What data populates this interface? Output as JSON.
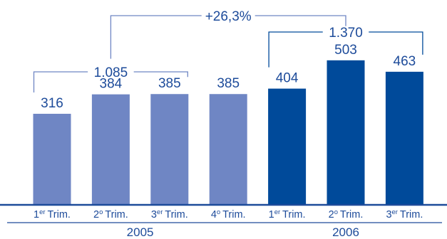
{
  "chart_data": {
    "type": "bar",
    "categories": [
      {
        "num": "1",
        "sup": "er",
        "word": "Trim."
      },
      {
        "num": "2",
        "sup": "o",
        "word": "Trim."
      },
      {
        "num": "3",
        "sup": "er",
        "word": "Trim."
      },
      {
        "num": "4",
        "sup": "o",
        "word": "Trim."
      },
      {
        "num": "1",
        "sup": "er",
        "word": "Trim."
      },
      {
        "num": "2",
        "sup": "o",
        "word": "Trim."
      },
      {
        "num": "3",
        "sup": "er",
        "word": "Trim."
      }
    ],
    "values": [
      316,
      384,
      385,
      385,
      404,
      503,
      463
    ],
    "value_labels": [
      "316",
      "384",
      "385",
      "385",
      "404",
      "503",
      "463"
    ],
    "groups": [
      {
        "label": "2005",
        "start": 0,
        "end": 3,
        "color": "#6f86c4"
      },
      {
        "label": "2006",
        "start": 4,
        "end": 6,
        "color": "#004a9a"
      }
    ],
    "annotations": [
      {
        "text": "1.085",
        "from": 0,
        "to": 2,
        "color": "#6f86c4",
        "level": "low"
      },
      {
        "text": "1.370",
        "from": 4,
        "to": 6,
        "color": "#004a9a",
        "level": "mid"
      },
      {
        "text": "+26,3%",
        "from": 1,
        "to": 5,
        "color": "#6f86c4",
        "level": "high"
      }
    ],
    "ylim": [
      0,
      600
    ],
    "grid": false,
    "axis_color": "#1d4b9a"
  }
}
